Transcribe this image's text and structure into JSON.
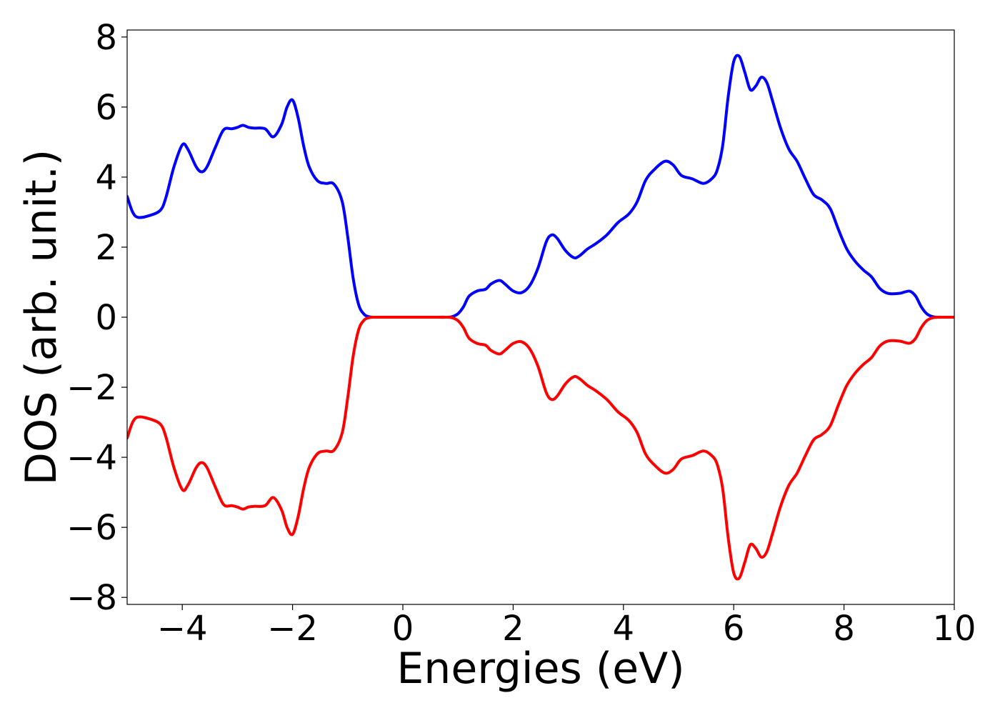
{
  "chart_data": {
    "type": "line",
    "title": "",
    "xlabel": "Energies (eV)",
    "ylabel": "DOS (arb. unit.)",
    "xlim": [
      -5,
      10
    ],
    "ylim": [
      -8.2,
      8.2
    ],
    "xticks": [
      -4,
      -2,
      0,
      2,
      4,
      6,
      8,
      10
    ],
    "xtick_labels": [
      "−4",
      "−2",
      "0",
      "2",
      "4",
      "6",
      "8",
      "10"
    ],
    "yticks": [
      -8,
      -6,
      -4,
      -2,
      0,
      2,
      4,
      6,
      8
    ],
    "ytick_labels": [
      "−8",
      "−6",
      "−4",
      "−2",
      "0",
      "2",
      "4",
      "6",
      "8"
    ],
    "grid": false,
    "legend": "none",
    "series": [
      {
        "color": "#0000ff",
        "x": [
          -5.0,
          -4.9,
          -4.8,
          -4.6,
          -4.4,
          -4.3,
          -4.15,
          -4.0,
          -3.9,
          -3.75,
          -3.65,
          -3.55,
          -3.4,
          -3.25,
          -3.1,
          -3.0,
          -2.9,
          -2.8,
          -2.7,
          -2.5,
          -2.35,
          -2.2,
          -2.1,
          -2.0,
          -1.9,
          -1.8,
          -1.7,
          -1.55,
          -1.4,
          -1.25,
          -1.1,
          -1.0,
          -0.9,
          -0.8,
          -0.7,
          -0.6,
          -0.5,
          -0.3,
          0.0,
          0.5,
          0.8,
          0.9,
          1.0,
          1.1,
          1.2,
          1.35,
          1.5,
          1.6,
          1.75,
          1.85,
          2.0,
          2.15,
          2.3,
          2.45,
          2.6,
          2.7,
          2.8,
          2.95,
          3.1,
          3.2,
          3.35,
          3.5,
          3.7,
          3.9,
          4.1,
          4.25,
          4.4,
          4.55,
          4.75,
          4.9,
          5.05,
          5.25,
          5.45,
          5.6,
          5.7,
          5.8,
          5.9,
          6.0,
          6.1,
          6.2,
          6.3,
          6.4,
          6.5,
          6.6,
          6.7,
          6.85,
          7.0,
          7.15,
          7.3,
          7.45,
          7.6,
          7.75,
          7.9,
          8.05,
          8.2,
          8.35,
          8.5,
          8.65,
          8.8,
          9.0,
          9.1,
          9.2,
          9.3,
          9.4,
          9.5,
          9.6,
          9.7,
          9.8,
          10.0
        ],
        "y": [
          3.45,
          3.0,
          2.85,
          2.9,
          3.05,
          3.4,
          4.3,
          4.92,
          4.8,
          4.3,
          4.15,
          4.3,
          4.85,
          5.35,
          5.38,
          5.42,
          5.48,
          5.42,
          5.4,
          5.38,
          5.15,
          5.5,
          6.0,
          6.2,
          5.7,
          4.9,
          4.3,
          3.9,
          3.82,
          3.8,
          3.3,
          2.3,
          1.1,
          0.35,
          0.08,
          0.01,
          0.0,
          0.0,
          0.0,
          0.0,
          0.0,
          0.02,
          0.1,
          0.3,
          0.6,
          0.75,
          0.8,
          0.95,
          1.05,
          0.95,
          0.75,
          0.7,
          0.9,
          1.4,
          2.15,
          2.35,
          2.25,
          1.9,
          1.7,
          1.75,
          1.95,
          2.1,
          2.35,
          2.7,
          2.95,
          3.3,
          3.9,
          4.2,
          4.45,
          4.35,
          4.05,
          3.95,
          3.82,
          3.95,
          4.2,
          4.9,
          6.3,
          7.3,
          7.45,
          7.0,
          6.5,
          6.6,
          6.85,
          6.7,
          6.2,
          5.4,
          4.8,
          4.45,
          3.95,
          3.5,
          3.35,
          3.1,
          2.5,
          1.95,
          1.6,
          1.35,
          1.15,
          0.82,
          0.68,
          0.68,
          0.72,
          0.74,
          0.6,
          0.3,
          0.1,
          0.02,
          0.0,
          0.0,
          0.0
        ]
      },
      {
        "color": "#ff0000",
        "x": [
          -5.0,
          -4.9,
          -4.8,
          -4.6,
          -4.4,
          -4.3,
          -4.15,
          -4.0,
          -3.9,
          -3.75,
          -3.65,
          -3.55,
          -3.4,
          -3.25,
          -3.1,
          -3.0,
          -2.9,
          -2.8,
          -2.7,
          -2.5,
          -2.35,
          -2.2,
          -2.1,
          -2.0,
          -1.9,
          -1.8,
          -1.7,
          -1.55,
          -1.4,
          -1.25,
          -1.1,
          -1.0,
          -0.9,
          -0.8,
          -0.7,
          -0.6,
          -0.5,
          -0.3,
          0.0,
          0.5,
          0.8,
          0.9,
          1.0,
          1.1,
          1.2,
          1.35,
          1.5,
          1.6,
          1.75,
          1.85,
          2.0,
          2.15,
          2.3,
          2.45,
          2.6,
          2.7,
          2.8,
          2.95,
          3.1,
          3.2,
          3.35,
          3.5,
          3.7,
          3.9,
          4.1,
          4.25,
          4.4,
          4.55,
          4.75,
          4.9,
          5.05,
          5.25,
          5.45,
          5.6,
          5.7,
          5.8,
          5.9,
          6.0,
          6.1,
          6.2,
          6.3,
          6.4,
          6.5,
          6.6,
          6.7,
          6.85,
          7.0,
          7.15,
          7.3,
          7.45,
          7.6,
          7.75,
          7.9,
          8.05,
          8.2,
          8.35,
          8.5,
          8.65,
          8.8,
          9.0,
          9.1,
          9.2,
          9.3,
          9.4,
          9.5,
          9.6,
          9.7,
          9.8,
          10.0
        ],
        "y": [
          -3.45,
          -3.0,
          -2.85,
          -2.9,
          -3.05,
          -3.4,
          -4.3,
          -4.92,
          -4.8,
          -4.3,
          -4.15,
          -4.3,
          -4.85,
          -5.35,
          -5.38,
          -5.42,
          -5.48,
          -5.42,
          -5.4,
          -5.38,
          -5.15,
          -5.5,
          -6.0,
          -6.2,
          -5.7,
          -4.9,
          -4.3,
          -3.9,
          -3.82,
          -3.8,
          -3.3,
          -2.3,
          -1.1,
          -0.35,
          -0.08,
          -0.01,
          0.0,
          0.0,
          0.0,
          0.0,
          0.0,
          -0.02,
          -0.1,
          -0.3,
          -0.6,
          -0.75,
          -0.8,
          -0.95,
          -1.05,
          -0.95,
          -0.75,
          -0.7,
          -0.9,
          -1.4,
          -2.15,
          -2.35,
          -2.25,
          -1.9,
          -1.7,
          -1.75,
          -1.95,
          -2.1,
          -2.35,
          -2.7,
          -2.95,
          -3.3,
          -3.9,
          -4.2,
          -4.45,
          -4.35,
          -4.05,
          -3.95,
          -3.82,
          -3.95,
          -4.2,
          -4.9,
          -6.3,
          -7.3,
          -7.45,
          -7.0,
          -6.5,
          -6.6,
          -6.85,
          -6.7,
          -6.2,
          -5.4,
          -4.8,
          -4.45,
          -3.95,
          -3.5,
          -3.35,
          -3.1,
          -2.5,
          -1.95,
          -1.6,
          -1.35,
          -1.15,
          -0.82,
          -0.68,
          -0.68,
          -0.72,
          -0.74,
          -0.6,
          -0.3,
          -0.1,
          -0.02,
          0.0,
          0.0,
          0.0
        ]
      }
    ]
  }
}
